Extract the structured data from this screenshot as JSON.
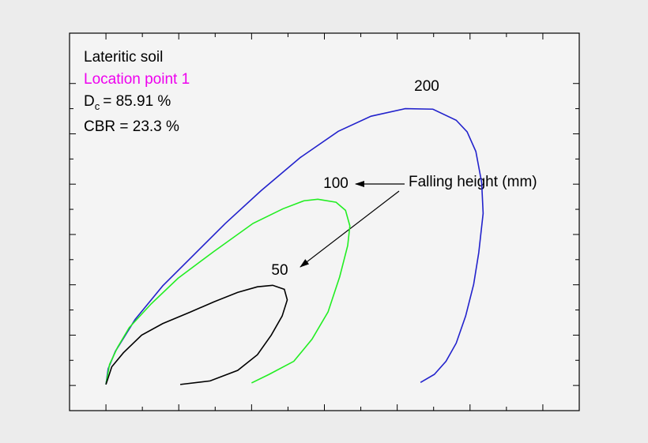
{
  "chart_data": {
    "type": "line",
    "texts": {
      "soil": "Lateritic soil",
      "location": "Location point 1",
      "dc_main": "D",
      "dc_sub": "c",
      "dc_value": "= 85.91 %",
      "cbr": "CBR = 23.3 %",
      "annotation": "Falling height (mm)"
    },
    "location_color": "#ee00ee",
    "xlim": [
      -0.5,
      6.5
    ],
    "ylim": [
      -0.5,
      7.0
    ],
    "xticks": [
      0,
      1,
      2,
      3,
      4,
      5,
      6
    ],
    "yticks": [
      0,
      1,
      2,
      3,
      4,
      5,
      6
    ],
    "series": [
      {
        "name": "200",
        "color": "#2222cc",
        "x": [
          4.32,
          4.51,
          4.67,
          4.81,
          4.94,
          5.05,
          5.12,
          5.18,
          5.16,
          5.08,
          4.96,
          4.81,
          4.49,
          4.11,
          3.64,
          3.19,
          2.67,
          2.13,
          1.64,
          1.21,
          0.78,
          0.4,
          0.13,
          0.03,
          0.0
        ],
        "values": [
          0.06,
          0.22,
          0.48,
          0.84,
          1.38,
          2.01,
          2.64,
          3.42,
          4.03,
          4.65,
          5.04,
          5.27,
          5.49,
          5.5,
          5.35,
          5.05,
          4.53,
          3.87,
          3.22,
          2.6,
          1.98,
          1.31,
          0.68,
          0.33,
          0.02
        ]
      },
      {
        "name": "100",
        "color": "#22ee22",
        "x": [
          2.0,
          2.24,
          2.58,
          2.83,
          3.05,
          3.21,
          3.32,
          3.35,
          3.29,
          3.16,
          2.91,
          2.72,
          2.43,
          2.02,
          1.48,
          0.99,
          0.62,
          0.32,
          0.16,
          0.05,
          0.0
        ],
        "values": [
          0.05,
          0.22,
          0.48,
          0.92,
          1.46,
          2.16,
          2.78,
          3.17,
          3.48,
          3.64,
          3.7,
          3.67,
          3.51,
          3.22,
          2.66,
          2.13,
          1.62,
          1.15,
          0.76,
          0.42,
          0.02
        ]
      },
      {
        "name": "50",
        "color": "#000000",
        "x": [
          1.02,
          1.43,
          1.81,
          2.08,
          2.27,
          2.42,
          2.49,
          2.45,
          2.29,
          2.08,
          1.81,
          1.48,
          1.16,
          0.78,
          0.49,
          0.24,
          0.08,
          0.0
        ],
        "values": [
          0.02,
          0.09,
          0.3,
          0.61,
          1.0,
          1.38,
          1.7,
          1.91,
          1.99,
          1.96,
          1.85,
          1.66,
          1.46,
          1.23,
          1.0,
          0.65,
          0.37,
          0.02
        ]
      }
    ]
  }
}
